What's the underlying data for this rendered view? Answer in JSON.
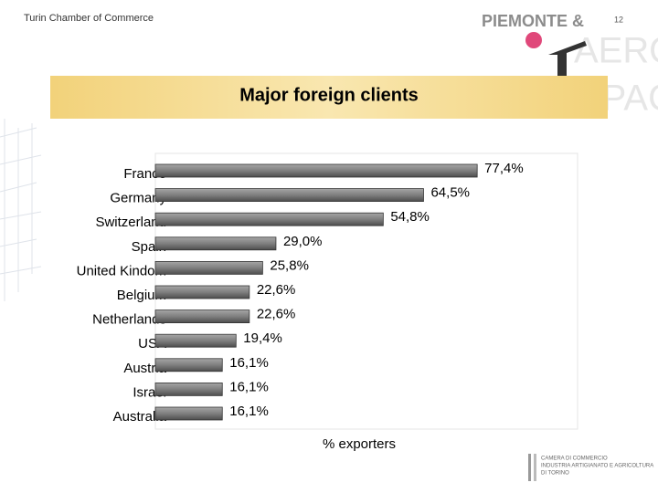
{
  "header": {
    "organization": "Turin Chamber of Commerce",
    "page_number": "12",
    "logo": "PIEMONTE &",
    "logo_big_1": "AERO",
    "logo_big_2": "SPACE",
    "footer_logo_1": "CAMERA DI COMMERCIO",
    "footer_logo_2": "INDUSTRIA ARTIGIANATO E AGRICOLTURA",
    "footer_logo_3": "DI TORINO"
  },
  "chart_data": {
    "type": "hbar",
    "title": "Major foreign clients",
    "x_label": "% exporters",
    "categories": [
      "France",
      "Germany",
      "Switzerland",
      "Spain",
      "United Kindom",
      "Belgium",
      "Netherlands",
      "USA",
      "Austria",
      "Israel",
      "Australia"
    ],
    "values": [
      77.4,
      64.5,
      54.8,
      29.0,
      25.8,
      22.6,
      22.6,
      19.4,
      16.1,
      16.1,
      16.1
    ],
    "value_labels": [
      "77,4%",
      "64,5%",
      "54,8%",
      "29,0%",
      "25,8%",
      "22,6%",
      "22,6%",
      "19,4%",
      "16,1%",
      "16,1%",
      "16,1%"
    ],
    "color": "#7f7f7f",
    "xlim": [
      0,
      100
    ]
  }
}
